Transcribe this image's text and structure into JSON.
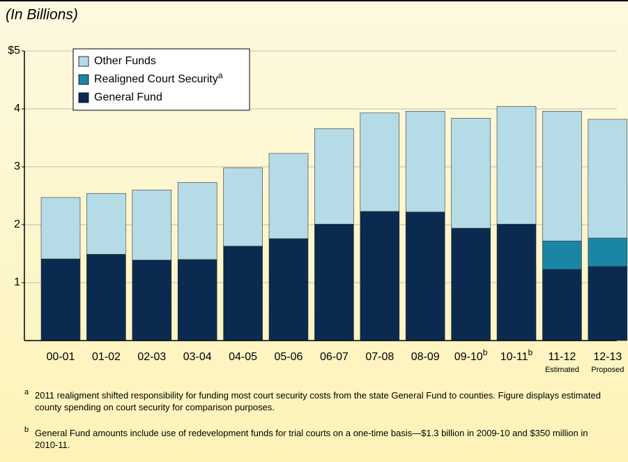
{
  "chart_data": {
    "type": "stacked_bar",
    "unit_note": "(In Billions)",
    "categories": [
      "00-01",
      "01-02",
      "02-03",
      "03-04",
      "04-05",
      "05-06",
      "06-07",
      "07-08",
      "08-09",
      "09-10",
      "10-11",
      "11-12",
      "12-13"
    ],
    "category_notes": [
      null,
      null,
      null,
      null,
      null,
      null,
      null,
      null,
      null,
      "b",
      "b",
      null,
      null
    ],
    "category_sublabels": [
      null,
      null,
      null,
      null,
      null,
      null,
      null,
      null,
      null,
      null,
      null,
      "Estimated",
      "Proposed"
    ],
    "series": [
      {
        "name": "General Fund",
        "color": "#0b2a4f",
        "values": [
          1.41,
          1.49,
          1.39,
          1.4,
          1.63,
          1.76,
          2.01,
          2.23,
          2.22,
          1.94,
          2.01,
          1.23,
          1.28
        ]
      },
      {
        "name": "Realigned Court Security",
        "note": "a",
        "color": "#1a86a6",
        "values": [
          null,
          null,
          null,
          null,
          null,
          null,
          null,
          null,
          null,
          null,
          null,
          0.49,
          0.49
        ]
      },
      {
        "name": "Other Funds",
        "color": "#b5dbe7",
        "values": [
          1.06,
          1.05,
          1.21,
          1.33,
          1.35,
          1.47,
          1.65,
          1.7,
          1.74,
          1.9,
          2.03,
          2.24,
          2.05
        ]
      }
    ],
    "ylim": [
      0,
      5
    ],
    "yticks": [
      1,
      2,
      3,
      4,
      {
        "value": 5,
        "label": "$5"
      }
    ],
    "grid": true,
    "legend": "upper left",
    "footnotes": [
      {
        "marker": "a",
        "text": "2011 realigment shifted responsibility for funding most court security costs from the state General Fund to counties. Figure displays estimated county spending on court security for comparison purposes."
      },
      {
        "marker": "b",
        "text": "General Fund amounts include use of redevelopment funds for trial courts on a one-time basis—$1.3 billion in 2009-10 and $350 million in 2010-11."
      }
    ]
  }
}
